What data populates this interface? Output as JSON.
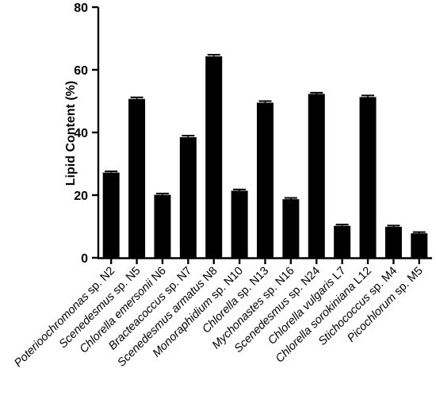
{
  "chart_data": {
    "type": "bar",
    "title": "",
    "xlabel": "",
    "ylabel": "Lipid Content (%)",
    "ylim": [
      0,
      80
    ],
    "yticks": [
      "0",
      "20",
      "40",
      "60",
      "80"
    ],
    "grid": false,
    "legend": "none",
    "bar_color": "#000000",
    "error_bars": true,
    "categories": [
      {
        "italic": "Poterioochromonas",
        "rest": " sp. N2"
      },
      {
        "italic": "Scenedesmus",
        "rest": " sp. N5"
      },
      {
        "italic": "Chlorella emersonii",
        "rest": " N6"
      },
      {
        "italic": "Bracteacoccus",
        "rest": " sp. N7"
      },
      {
        "italic": "Scenedesmus armatus",
        "rest": " N8"
      },
      {
        "italic": "Monoraphidium",
        "rest": " sp. N10"
      },
      {
        "italic": "Chlorella",
        "rest": " sp. N13"
      },
      {
        "italic": "Mychonastes",
        "rest": " sp. N16"
      },
      {
        "italic": "Scenedesmus",
        "rest": " sp. N24"
      },
      {
        "italic": "Chlorella vulgaris",
        "rest": " L7"
      },
      {
        "italic": "Chlorella sorokiniana",
        "rest": " L12"
      },
      {
        "italic": "Stichococcus",
        "rest": " sp. M4"
      },
      {
        "italic": "Picochlorum",
        "rest": " sp. M5"
      }
    ],
    "values": [
      27.2,
      50.7,
      20.1,
      38.5,
      64.3,
      21.4,
      49.5,
      18.7,
      52.3,
      10.2,
      51.3,
      9.9,
      7.8
    ],
    "errors": [
      0.4,
      0.5,
      0.4,
      0.5,
      0.5,
      0.4,
      0.5,
      0.4,
      0.4,
      0.4,
      0.5,
      0.4,
      0.4
    ]
  }
}
